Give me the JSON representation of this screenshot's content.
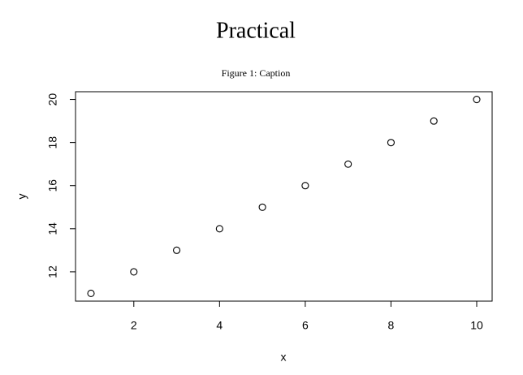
{
  "title": "Practical",
  "chart_data": {
    "type": "scatter",
    "caption": "Figure 1: Caption",
    "x_label": "x",
    "y_label": "y",
    "x": [
      1,
      2,
      3,
      4,
      5,
      6,
      7,
      8,
      9,
      10
    ],
    "values": [
      11,
      12,
      13,
      14,
      15,
      16,
      17,
      18,
      19,
      20
    ],
    "color": "#000000",
    "xlim": [
      0.64,
      10.36
    ],
    "xticks": [
      2,
      4,
      6,
      8,
      10
    ],
    "ylim": [
      10.64,
      20.36
    ],
    "yticks": [
      12,
      14,
      16,
      18,
      20
    ],
    "grid": false
  }
}
